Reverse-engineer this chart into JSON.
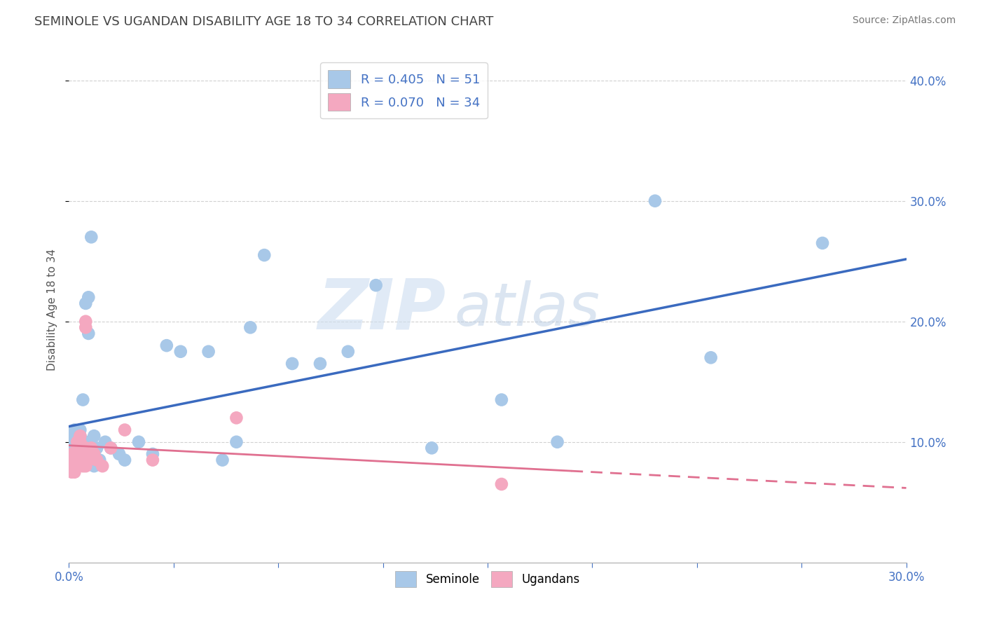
{
  "title": "SEMINOLE VS UGANDAN DISABILITY AGE 18 TO 34 CORRELATION CHART",
  "source": "Source: ZipAtlas.com",
  "ylabel": "Disability Age 18 to 34",
  "xmin": 0.0,
  "xmax": 0.3,
  "ymin": 0.0,
  "ymax": 0.42,
  "seminole_color": "#a8c8e8",
  "ugandan_color": "#f4a8c0",
  "seminole_line_color": "#3a6abf",
  "ugandan_line_color": "#e07090",
  "seminole_R": 0.405,
  "seminole_N": 51,
  "ugandan_R": 0.07,
  "ugandan_N": 34,
  "background_color": "#ffffff",
  "grid_color": "#cccccc",
  "watermark_zip": "ZIP",
  "watermark_atlas": "atlas",
  "watermark_color_zip": "#c8d8ee",
  "watermark_color_atlas": "#b0c8e0",
  "seminole_x": [
    0.001,
    0.001,
    0.002,
    0.002,
    0.002,
    0.003,
    0.003,
    0.003,
    0.003,
    0.004,
    0.004,
    0.004,
    0.004,
    0.005,
    0.005,
    0.005,
    0.005,
    0.006,
    0.006,
    0.006,
    0.007,
    0.007,
    0.008,
    0.008,
    0.009,
    0.009,
    0.01,
    0.011,
    0.013,
    0.015,
    0.018,
    0.02,
    0.025,
    0.03,
    0.035,
    0.04,
    0.05,
    0.055,
    0.06,
    0.065,
    0.07,
    0.08,
    0.09,
    0.1,
    0.11,
    0.13,
    0.155,
    0.175,
    0.21,
    0.23,
    0.27
  ],
  "seminole_y": [
    0.095,
    0.105,
    0.09,
    0.1,
    0.11,
    0.085,
    0.095,
    0.105,
    0.095,
    0.1,
    0.09,
    0.105,
    0.11,
    0.135,
    0.09,
    0.1,
    0.095,
    0.1,
    0.095,
    0.215,
    0.19,
    0.22,
    0.085,
    0.27,
    0.105,
    0.08,
    0.095,
    0.085,
    0.1,
    0.095,
    0.09,
    0.085,
    0.1,
    0.09,
    0.18,
    0.175,
    0.175,
    0.085,
    0.1,
    0.195,
    0.255,
    0.165,
    0.165,
    0.175,
    0.23,
    0.095,
    0.135,
    0.1,
    0.3,
    0.17,
    0.265
  ],
  "ugandan_x": [
    0.001,
    0.001,
    0.001,
    0.001,
    0.002,
    0.002,
    0.002,
    0.002,
    0.003,
    0.003,
    0.003,
    0.003,
    0.003,
    0.004,
    0.004,
    0.004,
    0.004,
    0.004,
    0.005,
    0.005,
    0.006,
    0.006,
    0.006,
    0.006,
    0.007,
    0.008,
    0.009,
    0.01,
    0.012,
    0.015,
    0.02,
    0.03,
    0.06,
    0.155
  ],
  "ugandan_y": [
    0.075,
    0.08,
    0.085,
    0.09,
    0.08,
    0.085,
    0.09,
    0.075,
    0.085,
    0.09,
    0.095,
    0.1,
    0.085,
    0.09,
    0.095,
    0.1,
    0.095,
    0.105,
    0.08,
    0.095,
    0.2,
    0.195,
    0.08,
    0.095,
    0.085,
    0.095,
    0.09,
    0.085,
    0.08,
    0.095,
    0.11,
    0.085,
    0.12,
    0.065
  ]
}
